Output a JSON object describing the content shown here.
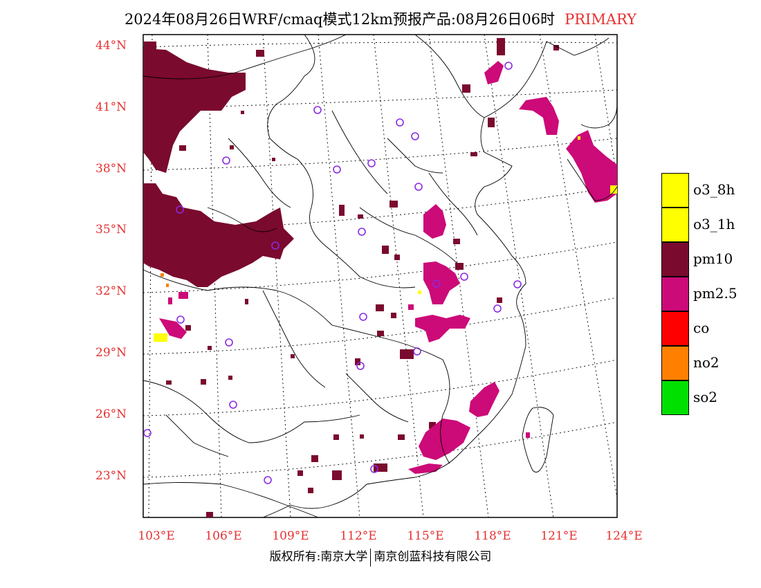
{
  "title": {
    "main": "2024年08月26日WRF/cmaq模式12km预报产品:08月26日06时",
    "primary": "PRIMARY"
  },
  "map": {
    "lat_labels": [
      "44°N",
      "41°N",
      "38°N",
      "35°N",
      "32°N",
      "29°N",
      "26°N",
      "23°N"
    ],
    "lon_labels": [
      "103°E",
      "106°E",
      "109°E",
      "112°E",
      "115°E",
      "118°E",
      "121°E",
      "124°E"
    ],
    "region_colors": {
      "pm10": "#7a0a2e",
      "pm25": "#cc0a78",
      "o3": "#ffff00",
      "no2": "#ff8000",
      "station": "#8a2be2"
    }
  },
  "legend": [
    {
      "label": "o3_8h",
      "color": "#ffff00"
    },
    {
      "label": "o3_1h",
      "color": "#ffff00"
    },
    {
      "label": "pm10",
      "color": "#7a0a2e"
    },
    {
      "label": "pm2.5",
      "color": "#cc0a78"
    },
    {
      "label": "co",
      "color": "#ff0000"
    },
    {
      "label": "no2",
      "color": "#ff8000"
    },
    {
      "label": "so2",
      "color": "#00e000"
    }
  ],
  "footer": {
    "left": "版权所有:南京大学",
    "right": "南京创蓝科技有限公司"
  }
}
